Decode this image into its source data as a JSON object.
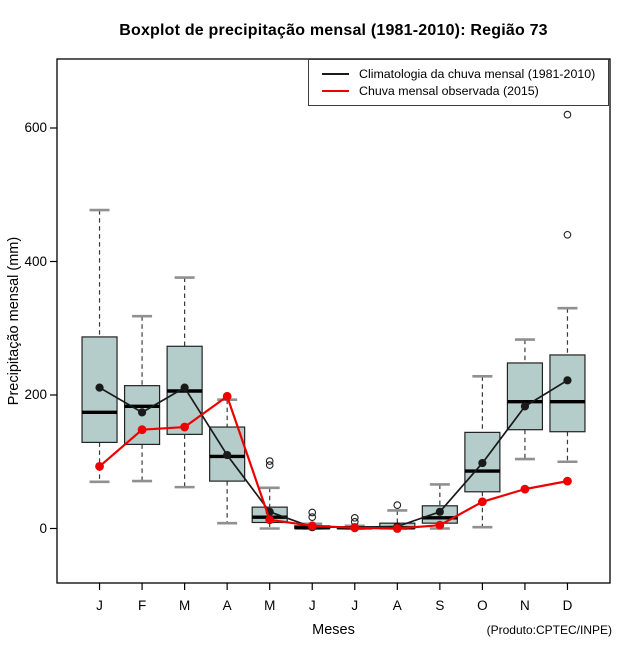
{
  "header": {
    "title": "Boxplot de precipitação mensal (1981-2010): Região 73"
  },
  "legend": {
    "items": [
      {
        "label": "Climatologia da chuva mensal (1981-2010)",
        "color": "#1a1a1a"
      },
      {
        "label": "Chuva mensal observada (2015)",
        "color": "#ee0000"
      }
    ]
  },
  "footer": {
    "credit": "(Produto:CPTEC/INPE)"
  },
  "chart_data": {
    "type": "boxplot",
    "title": "Boxplot de precipitação mensal (1981-2010): Região 73",
    "xlabel": "Meses",
    "ylabel": "Precipitação mensal (mm)",
    "categories": [
      "J",
      "F",
      "M",
      "A",
      "M",
      "J",
      "J",
      "A",
      "S",
      "O",
      "N",
      "D"
    ],
    "yticks": [
      0,
      200,
      400,
      600
    ],
    "ylim": [
      -80,
      700
    ],
    "grid": false,
    "legend_position": "top-right-inside",
    "boxes": [
      {
        "month": "Jan",
        "low": 70,
        "q1": 129,
        "median": 174,
        "q3": 287,
        "high": 477,
        "outliers": []
      },
      {
        "month": "Feb",
        "low": 71,
        "q1": 126,
        "median": 183,
        "q3": 214,
        "high": 318,
        "outliers": []
      },
      {
        "month": "Mar",
        "low": 62,
        "q1": 141,
        "median": 206,
        "q3": 273,
        "high": 376,
        "outliers": []
      },
      {
        "month": "Apr",
        "low": 8,
        "q1": 71,
        "median": 108,
        "q3": 152,
        "high": 193,
        "outliers": []
      },
      {
        "month": "May",
        "low": 0,
        "q1": 9,
        "median": 17,
        "q3": 32,
        "high": 61,
        "outliers": [
          95,
          101
        ]
      },
      {
        "month": "Jun",
        "low": 0,
        "q1": 0,
        "median": 1,
        "q3": 4,
        "high": 7,
        "outliers": [
          17,
          24
        ]
      },
      {
        "month": "Jul",
        "low": 0,
        "q1": 0,
        "median": 1,
        "q3": 2,
        "high": 4,
        "outliers": [
          10,
          16
        ]
      },
      {
        "month": "Aug",
        "low": 0,
        "q1": 0,
        "median": 1,
        "q3": 8,
        "high": 27,
        "outliers": [
          35
        ]
      },
      {
        "month": "Sep",
        "low": 0,
        "q1": 8,
        "median": 16,
        "q3": 34,
        "high": 66,
        "outliers": []
      },
      {
        "month": "Oct",
        "low": 2,
        "q1": 55,
        "median": 86,
        "q3": 144,
        "high": 228,
        "outliers": []
      },
      {
        "month": "Nov",
        "low": 104,
        "q1": 148,
        "median": 190,
        "q3": 248,
        "high": 283,
        "outliers": []
      },
      {
        "month": "Dec",
        "low": 100,
        "q1": 145,
        "median": 190,
        "q3": 260,
        "high": 330,
        "outliers": [
          440,
          620
        ]
      }
    ],
    "series": [
      {
        "name": "Climatologia da chuva mensal (1981-2010)",
        "type": "line+marker",
        "color": "#1a1a1a",
        "values": [
          211,
          174,
          211,
          110,
          25,
          2,
          2,
          3,
          25,
          98,
          183,
          222
        ]
      },
      {
        "name": "Chuva mensal observada (2015)",
        "type": "line+marker",
        "color": "#ee0000",
        "values": [
          93,
          148,
          152,
          198,
          13,
          4,
          1,
          0,
          5,
          40,
          59,
          71
        ]
      }
    ],
    "colors": {
      "box_fill": "#b5cdca",
      "box_stroke": "#222222",
      "median": "#000000",
      "whisker": "#3a3a3a",
      "whisker_cap": "#909090",
      "outlier": "#222222",
      "axis": "#000000"
    }
  }
}
